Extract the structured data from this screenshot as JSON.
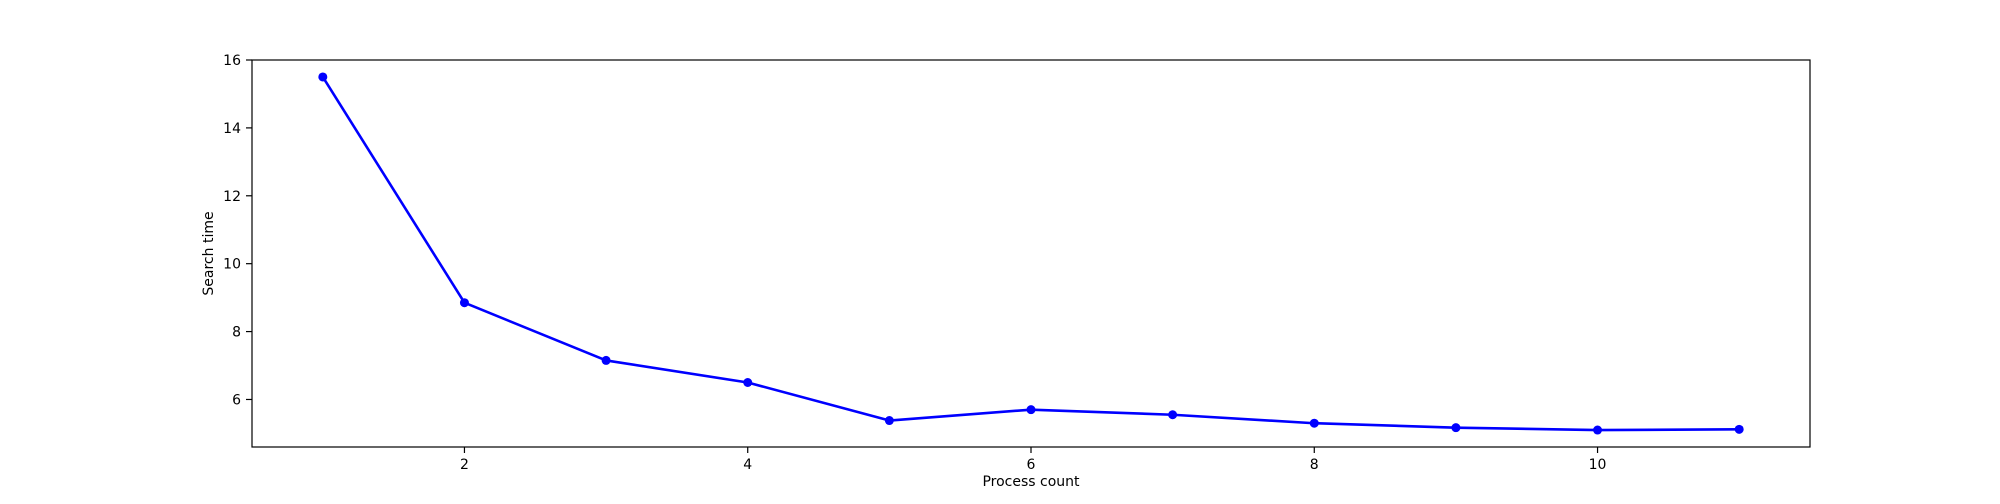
{
  "chart_data": {
    "type": "line",
    "title": "",
    "xlabel": "Process count",
    "ylabel": "Search time",
    "xlim": [
      0.5,
      11.5
    ],
    "ylim": [
      4.6,
      16.0
    ],
    "xticks": [
      2,
      4,
      6,
      8,
      10
    ],
    "yticks": [
      6,
      8,
      10,
      12,
      14,
      16
    ],
    "grid": false,
    "series": [
      {
        "x": [
          1,
          2,
          3,
          4,
          5,
          6,
          7,
          8,
          9,
          10,
          11
        ],
        "values": [
          15.5,
          8.85,
          7.15,
          6.5,
          5.38,
          5.7,
          5.55,
          5.3,
          5.17,
          5.1,
          5.12
        ],
        "color": "#0000ff",
        "marker": "circle"
      }
    ]
  }
}
